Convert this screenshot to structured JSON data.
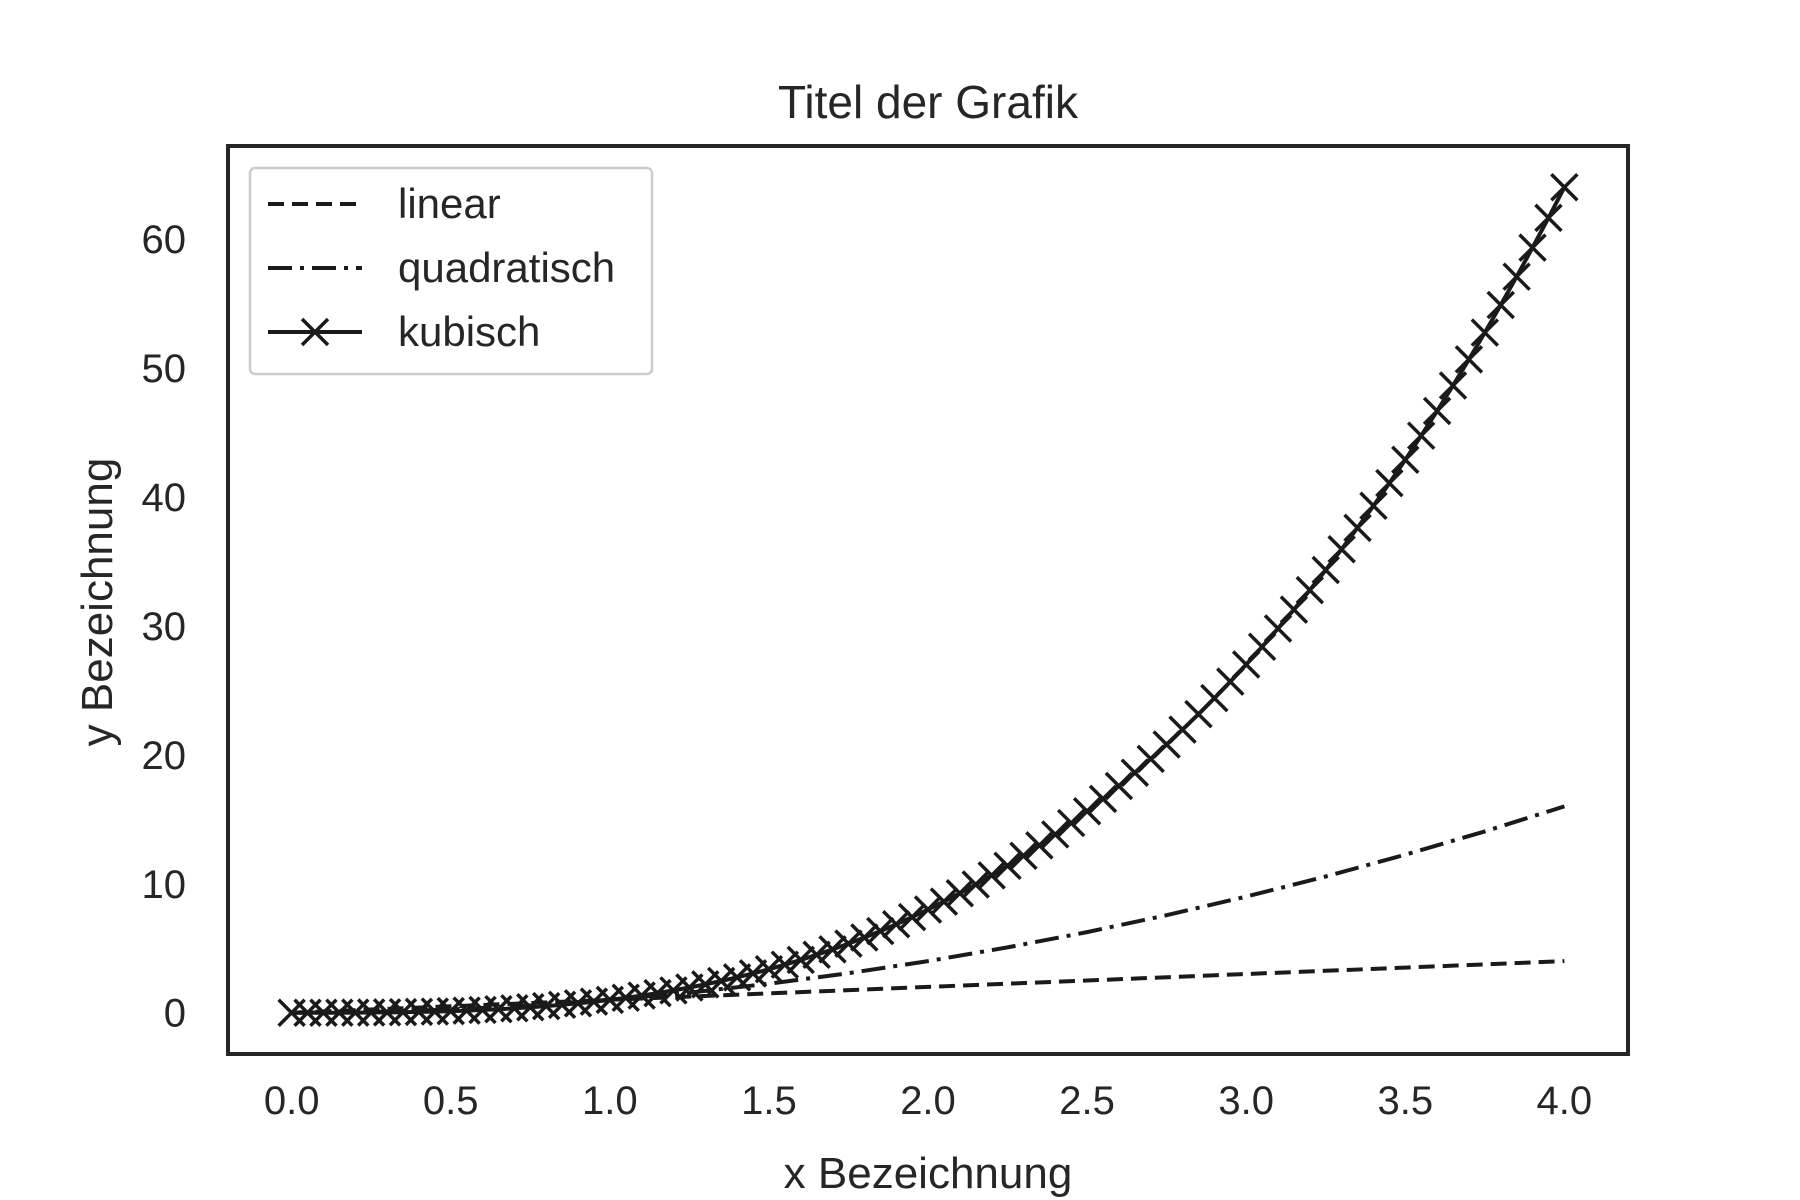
{
  "chart_data": {
    "type": "line",
    "title": "Titel der Grafik",
    "xlabel": "x Bezeichnung",
    "ylabel": "y Bezeichnung",
    "xlim": [
      -0.2,
      4.2
    ],
    "ylim": [
      -3.2,
      67.2
    ],
    "x_ticks": [
      0.0,
      0.5,
      1.0,
      1.5,
      2.0,
      2.5,
      3.0,
      3.5,
      4.0
    ],
    "x_tick_labels": [
      "0.0",
      "0.5",
      "1.0",
      "1.5",
      "2.0",
      "2.5",
      "3.0",
      "3.5",
      "4.0"
    ],
    "y_ticks": [
      0,
      10,
      20,
      30,
      40,
      50,
      60
    ],
    "y_tick_labels": [
      "0",
      "10",
      "20",
      "30",
      "40",
      "50",
      "60"
    ],
    "grid": false,
    "legend_position": "top-left",
    "series": [
      {
        "name": "linear",
        "line_style": "dashed",
        "marker": "none",
        "x": [
          0,
          0.5,
          1.0,
          1.5,
          2.0,
          2.5,
          3.0,
          3.5,
          4.0
        ],
        "y": [
          0,
          0.5,
          1.0,
          1.5,
          2.0,
          2.5,
          3.0,
          3.5,
          4.0
        ]
      },
      {
        "name": "quadratisch",
        "line_style": "dash-dot",
        "marker": "none",
        "x": [
          0,
          0.25,
          0.5,
          0.75,
          1.0,
          1.25,
          1.5,
          1.75,
          2.0,
          2.25,
          2.5,
          2.75,
          3.0,
          3.25,
          3.5,
          3.75,
          4.0
        ],
        "y": [
          0,
          0.0625,
          0.25,
          0.5625,
          1.0,
          1.5625,
          2.25,
          3.0625,
          4.0,
          5.0625,
          6.25,
          7.5625,
          9.0,
          10.5625,
          12.25,
          14.0625,
          16.0
        ]
      },
      {
        "name": "kubisch",
        "line_style": "solid",
        "marker": "x",
        "x": [
          0,
          0.05,
          0.1,
          0.15,
          0.2,
          0.25,
          0.3,
          0.35,
          0.4,
          0.45,
          0.5,
          0.55,
          0.6,
          0.65,
          0.7,
          0.75,
          0.8,
          0.85,
          0.9,
          0.95,
          1.0,
          1.05,
          1.1,
          1.15,
          1.2,
          1.25,
          1.3,
          1.35,
          1.4,
          1.45,
          1.5,
          1.55,
          1.6,
          1.65,
          1.7,
          1.75,
          1.8,
          1.85,
          1.9,
          1.95,
          2.0,
          2.05,
          2.1,
          2.15,
          2.2,
          2.25,
          2.3,
          2.35,
          2.4,
          2.45,
          2.5,
          2.55,
          2.6,
          2.65,
          2.7,
          2.75,
          2.8,
          2.85,
          2.9,
          2.95,
          3.0,
          3.05,
          3.1,
          3.15,
          3.2,
          3.25,
          3.3,
          3.35,
          3.4,
          3.45,
          3.5,
          3.55,
          3.6,
          3.65,
          3.7,
          3.75,
          3.8,
          3.85,
          3.9,
          3.95,
          4.0
        ],
        "y": [
          0,
          0.0001,
          0.001,
          0.0034,
          0.008,
          0.0156,
          0.027,
          0.0429,
          0.064,
          0.0911,
          0.125,
          0.1664,
          0.216,
          0.2746,
          0.343,
          0.4219,
          0.512,
          0.6141,
          0.729,
          0.8574,
          1.0,
          1.1576,
          1.331,
          1.5209,
          1.728,
          1.9531,
          2.197,
          2.4604,
          2.744,
          3.0486,
          3.375,
          3.7239,
          4.096,
          4.4921,
          4.913,
          5.3594,
          5.832,
          6.3316,
          6.859,
          7.4149,
          8.0,
          8.6151,
          9.261,
          9.9384,
          10.648,
          11.3906,
          12.167,
          12.9779,
          13.824,
          14.7061,
          15.625,
          16.5814,
          17.576,
          18.6096,
          19.683,
          20.7969,
          21.952,
          23.1491,
          24.389,
          25.6724,
          27.0,
          28.3726,
          29.791,
          31.2559,
          32.768,
          34.3281,
          35.937,
          37.5954,
          39.304,
          41.0636,
          42.875,
          44.7389,
          46.656,
          48.6271,
          50.653,
          52.7344,
          54.872,
          57.0666,
          59.319,
          61.6299,
          64.0
        ]
      }
    ]
  }
}
